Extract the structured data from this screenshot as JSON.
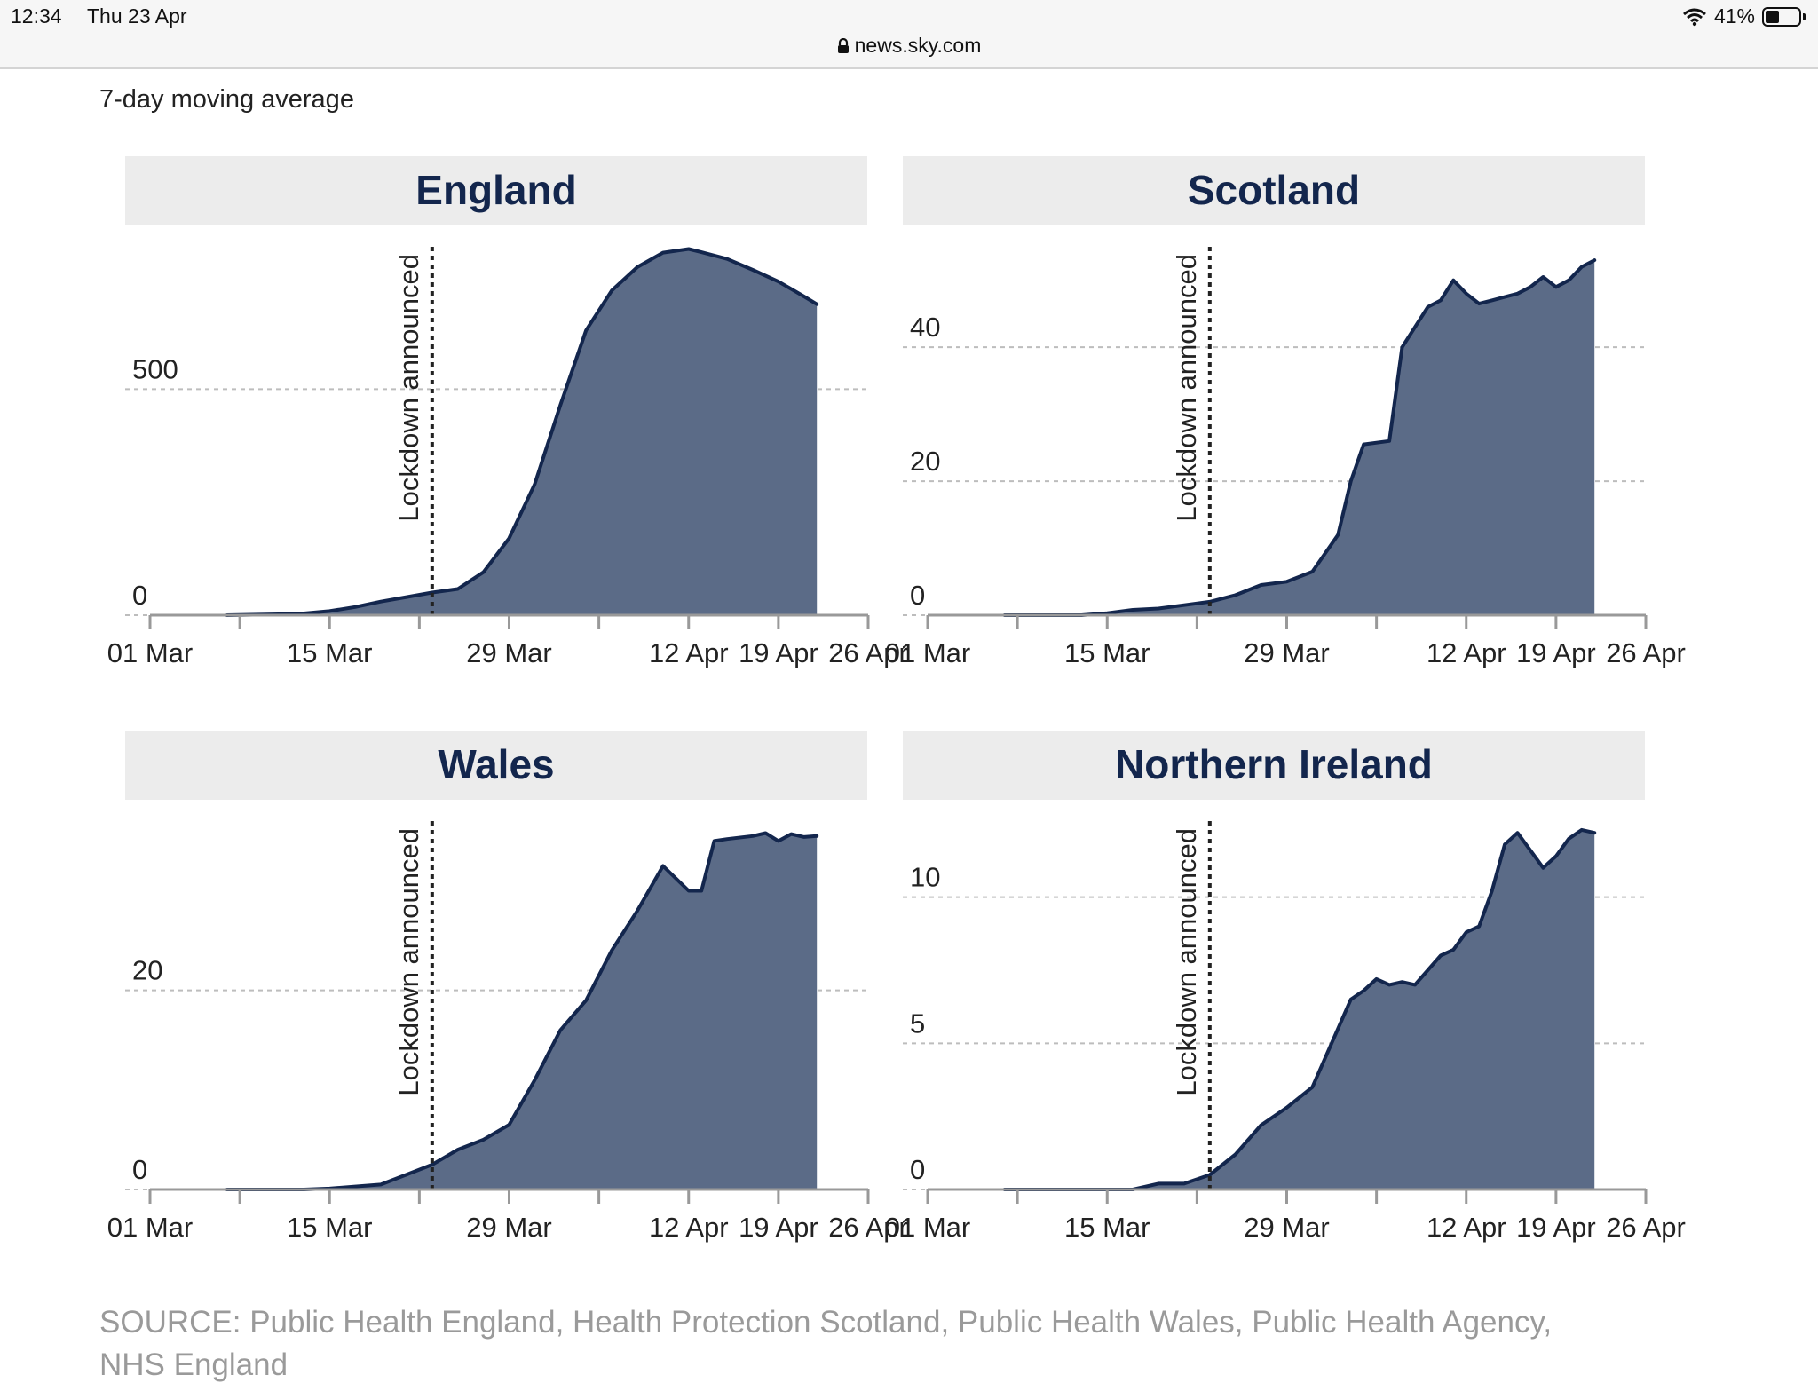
{
  "status": {
    "time": "12:34",
    "date": "Thu 23 Apr",
    "battery": "41%",
    "battery_level": 0.41,
    "url": "news.sky.com"
  },
  "subtitle": "7-day moving average",
  "source": "SOURCE: Public Health England, Health Protection Scotland, Public Health Wales, Public Health Agency,",
  "source_line2": "NHS England",
  "colors": {
    "fill": "#5b6b87",
    "line": "#13264d",
    "title": "#13264d",
    "header_bg": "#ececec",
    "grid": "#bdbdbd"
  },
  "chart_data": [
    {
      "type": "area",
      "title": "England",
      "annotation": "Lockdown announced",
      "annotation_x": "2020-03-23",
      "x_ticks": [
        "01 Mar",
        "15 Mar",
        "29 Mar",
        "12 Apr",
        "19 Apr",
        "26 Apr"
      ],
      "x_range": [
        "2020-03-01",
        "2020-04-26"
      ],
      "y_ticks": [
        0,
        500
      ],
      "ylim": [
        0,
        815
      ],
      "grid": "horizontal dashed",
      "x": [
        "2020-03-07",
        "2020-03-09",
        "2020-03-11",
        "2020-03-13",
        "2020-03-15",
        "2020-03-17",
        "2020-03-19",
        "2020-03-21",
        "2020-03-23",
        "2020-03-25",
        "2020-03-27",
        "2020-03-29",
        "2020-03-31",
        "2020-04-02",
        "2020-04-04",
        "2020-04-06",
        "2020-04-08",
        "2020-04-10",
        "2020-04-12",
        "2020-04-13",
        "2020-04-15",
        "2020-04-17",
        "2020-04-19",
        "2020-04-21",
        "2020-04-22"
      ],
      "values": [
        0,
        1,
        2,
        4,
        9,
        18,
        30,
        40,
        50,
        58,
        95,
        170,
        290,
        465,
        630,
        718,
        770,
        802,
        810,
        803,
        788,
        764,
        738,
        705,
        688
      ]
    },
    {
      "type": "area",
      "title": "Scotland",
      "annotation": "Lockdown announced",
      "annotation_x": "2020-03-23",
      "x_ticks": [
        "01 Mar",
        "15 Mar",
        "29 Mar",
        "12 Apr",
        "19 Apr",
        "26 Apr"
      ],
      "x_range": [
        "2020-03-01",
        "2020-04-26"
      ],
      "y_ticks": [
        0,
        20,
        40
      ],
      "ylim": [
        0,
        55
      ],
      "grid": "horizontal dashed",
      "x": [
        "2020-03-07",
        "2020-03-10",
        "2020-03-13",
        "2020-03-15",
        "2020-03-17",
        "2020-03-19",
        "2020-03-21",
        "2020-03-23",
        "2020-03-25",
        "2020-03-27",
        "2020-03-29",
        "2020-03-31",
        "2020-04-02",
        "2020-04-03",
        "2020-04-04",
        "2020-04-06",
        "2020-04-07",
        "2020-04-09",
        "2020-04-10",
        "2020-04-11",
        "2020-04-12",
        "2020-04-13",
        "2020-04-14",
        "2020-04-15",
        "2020-04-16",
        "2020-04-17",
        "2020-04-18",
        "2020-04-19",
        "2020-04-20",
        "2020-04-21",
        "2020-04-22"
      ],
      "values": [
        0,
        0,
        0,
        0.3,
        0.8,
        1,
        1.5,
        2,
        3,
        4.5,
        5,
        6.5,
        12,
        20,
        25.5,
        26,
        40,
        46,
        47,
        50,
        48,
        46.5,
        47,
        47.5,
        48,
        49,
        50.5,
        49,
        50,
        52,
        53
      ]
    },
    {
      "type": "area",
      "title": "Wales",
      "annotation": "Lockdown announced",
      "annotation_x": "2020-03-23",
      "x_ticks": [
        "01 Mar",
        "15 Mar",
        "29 Mar",
        "12 Apr",
        "19 Apr",
        "26 Apr"
      ],
      "x_range": [
        "2020-03-01",
        "2020-04-26"
      ],
      "y_ticks": [
        0,
        20
      ],
      "ylim": [
        0,
        37
      ],
      "grid": "horizontal dashed",
      "x": [
        "2020-03-07",
        "2020-03-10",
        "2020-03-13",
        "2020-03-15",
        "2020-03-17",
        "2020-03-19",
        "2020-03-21",
        "2020-03-23",
        "2020-03-25",
        "2020-03-27",
        "2020-03-29",
        "2020-03-31",
        "2020-04-02",
        "2020-04-04",
        "2020-04-06",
        "2020-04-08",
        "2020-04-10",
        "2020-04-12",
        "2020-04-13",
        "2020-04-14",
        "2020-04-15",
        "2020-04-17",
        "2020-04-18",
        "2020-04-19",
        "2020-04-20",
        "2020-04-21",
        "2020-04-22"
      ],
      "values": [
        0,
        0,
        0,
        0.1,
        0.3,
        0.5,
        1.5,
        2.5,
        4,
        5,
        6.5,
        11,
        16,
        19,
        24,
        28,
        32.5,
        30,
        30,
        35,
        35.2,
        35.5,
        35.8,
        35,
        35.7,
        35.4,
        35.5
      ]
    },
    {
      "type": "area",
      "title": "Northern Ireland",
      "annotation": "Lockdown announced",
      "annotation_x": "2020-03-23",
      "x_ticks": [
        "01 Mar",
        "15 Mar",
        "29 Mar",
        "12 Apr",
        "19 Apr",
        "26 Apr"
      ],
      "x_range": [
        "2020-03-01",
        "2020-04-26"
      ],
      "y_ticks": [
        0,
        5,
        10
      ],
      "ylim": [
        0,
        12.6
      ],
      "grid": "horizontal dashed",
      "x": [
        "2020-03-07",
        "2020-03-10",
        "2020-03-13",
        "2020-03-15",
        "2020-03-17",
        "2020-03-19",
        "2020-03-21",
        "2020-03-23",
        "2020-03-25",
        "2020-03-27",
        "2020-03-29",
        "2020-03-31",
        "2020-04-02",
        "2020-04-03",
        "2020-04-04",
        "2020-04-05",
        "2020-04-06",
        "2020-04-07",
        "2020-04-08",
        "2020-04-10",
        "2020-04-11",
        "2020-04-12",
        "2020-04-13",
        "2020-04-14",
        "2020-04-15",
        "2020-04-16",
        "2020-04-17",
        "2020-04-18",
        "2020-04-19",
        "2020-04-20",
        "2020-04-21",
        "2020-04-22"
      ],
      "values": [
        0,
        0,
        0,
        0,
        0,
        0.2,
        0.2,
        0.5,
        1.2,
        2.2,
        2.8,
        3.5,
        5.5,
        6.5,
        6.8,
        7.2,
        7.0,
        7.1,
        7.0,
        8,
        8.2,
        8.8,
        9,
        10.2,
        11.8,
        12.2,
        11.6,
        11,
        11.4,
        12,
        12.3,
        12.2
      ]
    }
  ]
}
